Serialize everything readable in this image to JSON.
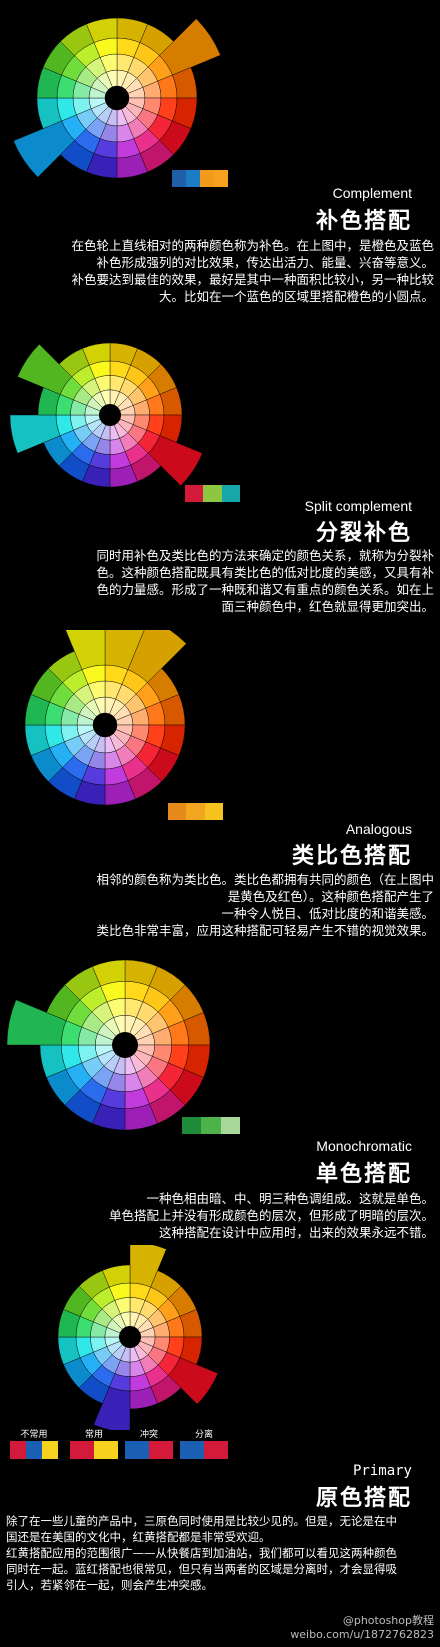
{
  "panels": [
    {
      "id": "complement",
      "label": "Complement",
      "heading": "补色搭配",
      "description": [
        "在色轮上直线相对的两种颜色称为补色。在上图中，是橙色及蓝色",
        "补色形成强列的对比效果，传达出活力、能量、兴奋等意义。",
        "补色要达到最佳的效果，最好是其中一种面积比较小，另一种比较",
        "大。比如在一个蓝色的区域里搭配橙色的小圆点。"
      ],
      "swatches": [
        "#1e5fa8",
        "#1b7bc4",
        "#f39a1c",
        "#f7a21e"
      ]
    },
    {
      "id": "split",
      "label": "Split complement",
      "heading": "分裂补色",
      "description": [
        "同时用补色及类比色的方法来确定的颜色关系，就称为分裂补",
        "色。这种颜色搭配既具有类比色的低对比度的美感，又具有补",
        "色的力量感。形成了一种既和谐又有重点的颜色关系。如在上",
        "面三种颜色中，红色就显得更加突出。"
      ],
      "swatches": [
        "#d41a3b",
        "#8dc63f",
        "#18a7a8"
      ]
    },
    {
      "id": "analogous",
      "label": "Analogous",
      "heading": "类比色搭配",
      "description": [
        "相邻的颜色称为类比色。类比色都拥有共同的颜色（在上图中",
        "是黄色及红色）。这种颜色搭配产生了",
        "一种令人悦目、低对比度的和谐美感。",
        "类比色非常丰富，应用这种搭配可轻易产生不错的视觉效果。"
      ],
      "swatches": [
        "#e68a1c",
        "#f2a51e",
        "#f6c21e"
      ]
    },
    {
      "id": "mono",
      "label": "Monochromatic",
      "heading": "单色搭配",
      "description": [
        "一种色相由暗、中、明三种色调组成。这就是单色。",
        "单色搭配上并没有形成颜色的层次，但形成了明暗的层次。",
        "这种搭配在设计中应用时，出来的效果永远不错。"
      ],
      "swatches": [
        "#1e8a3c",
        "#4db24a",
        "#a7d89a"
      ]
    },
    {
      "id": "primary",
      "label": "Primary",
      "heading": "原色搭配",
      "description": [
        "除了在一些儿童的产品中，三原色同时使用是比较少见的。但是，无论是在中",
        "国还是在美国的文化中，红黄搭配都是非常受欢迎。",
        "红黄搭配应用的范围很广——从快餐店到加油站，我们都可以看见这两种颜色",
        "同时在一起。蓝红搭配也很常见，但只有当两者的区域是分离时，才会显得吸",
        "引人，若紧邻在一起，则会产生冲突感。"
      ],
      "legend": [
        {
          "title": "不常用",
          "colors": [
            "#d41a3b",
            "#1b5fb4",
            "#f6d21e"
          ]
        },
        {
          "title": "常用",
          "colors": [
            "#d41a3b",
            "#f6d21e"
          ]
        },
        {
          "title": "冲突",
          "colors": [
            "#1b5fb4",
            "#d41a3b"
          ]
        },
        {
          "title": "分离",
          "colors": [
            "#1b5fb4",
            "#d41a3b"
          ]
        }
      ]
    }
  ],
  "watermark": {
    "line1": "@photoshop教程",
    "line2": "weibo.com/u/1872762823"
  }
}
